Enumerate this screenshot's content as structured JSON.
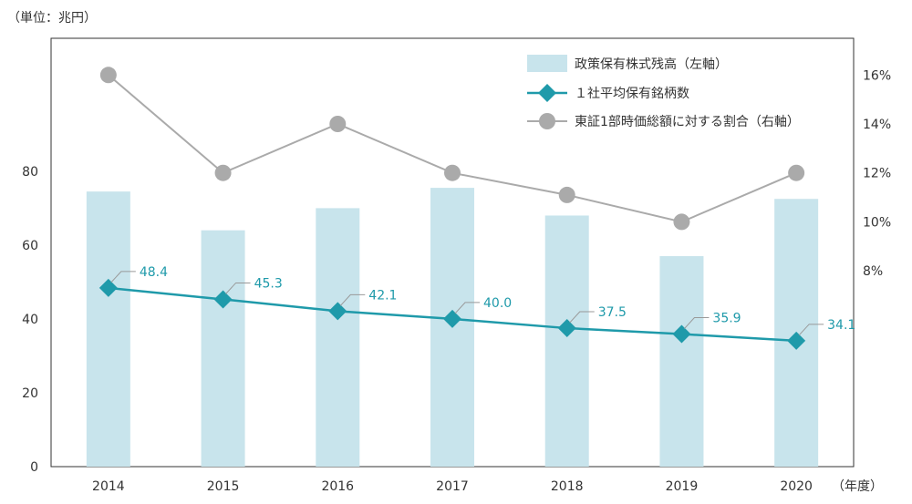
{
  "chart_data": {
    "type": "bar",
    "unit_left": "（単位：兆円）",
    "unit_x": "（年度）",
    "categories": [
      "2014",
      "2015",
      "2016",
      "2017",
      "2018",
      "2019",
      "2020"
    ],
    "left_axis": {
      "ticks": [
        "0",
        "20",
        "40",
        "60",
        "80"
      ],
      "ylim": [
        0,
        116
      ]
    },
    "right_axis": {
      "ticks": [
        "8%",
        "10%",
        "12%",
        "14%",
        "16%"
      ],
      "ylim": [
        0,
        17.5
      ]
    },
    "series": [
      {
        "name": "政策保有株式残高（左軸）",
        "type": "bar",
        "axis": "left",
        "color": "#c8e4ec",
        "values": [
          74.5,
          64,
          70,
          75.5,
          68,
          57,
          72.5
        ]
      },
      {
        "name": "１社平均保有銘柄数",
        "type": "line",
        "axis": "left",
        "color": "#1f9aaa",
        "marker": "diamond",
        "values": [
          48.4,
          45.3,
          42.1,
          40.0,
          37.5,
          35.9,
          34.1
        ],
        "labels": [
          "48.4",
          "45.3",
          "42.1",
          "40.0",
          "37.5",
          "35.9",
          "34.1"
        ]
      },
      {
        "name": "東証1部時価総額に対する割合（右軸）",
        "type": "line",
        "axis": "right",
        "color": "#aaaaaa",
        "marker": "circle",
        "values": [
          16,
          12,
          14,
          12,
          11.1,
          10,
          12
        ]
      }
    ],
    "grid": false,
    "legend_position": "top-right"
  }
}
